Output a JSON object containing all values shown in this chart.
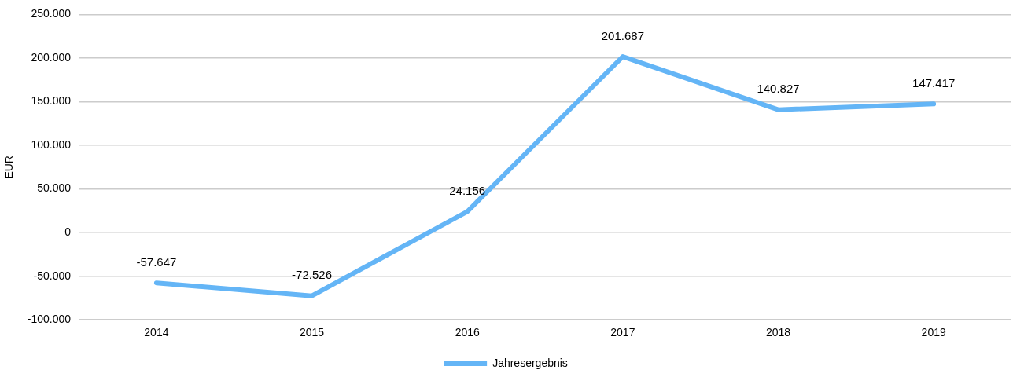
{
  "chart_data": {
    "type": "line",
    "ylabel": "EUR",
    "categories": [
      "2014",
      "2015",
      "2016",
      "2017",
      "2018",
      "2019"
    ],
    "series": [
      {
        "name": "Jahresergebnis",
        "color": "#64b5f6",
        "values": [
          -57647,
          -72526,
          24156,
          201687,
          140827,
          147417
        ],
        "value_labels": [
          "-57.647",
          "-72.526",
          "24.156",
          "201.687",
          "140.827",
          "147.417"
        ]
      }
    ],
    "ylim": [
      -100000,
      250000
    ],
    "yticks": [
      {
        "value": -100000,
        "label": "-100.000"
      },
      {
        "value": -50000,
        "label": "-50.000"
      },
      {
        "value": 0,
        "label": "0"
      },
      {
        "value": 50000,
        "label": "50.000"
      },
      {
        "value": 100000,
        "label": "100.000"
      },
      {
        "value": 150000,
        "label": "150.000"
      },
      {
        "value": 200000,
        "label": "200.000"
      },
      {
        "value": 250000,
        "label": "250.000"
      }
    ],
    "grid": "y",
    "legend": "bottom",
    "marker": "none",
    "line_style": "solid"
  }
}
